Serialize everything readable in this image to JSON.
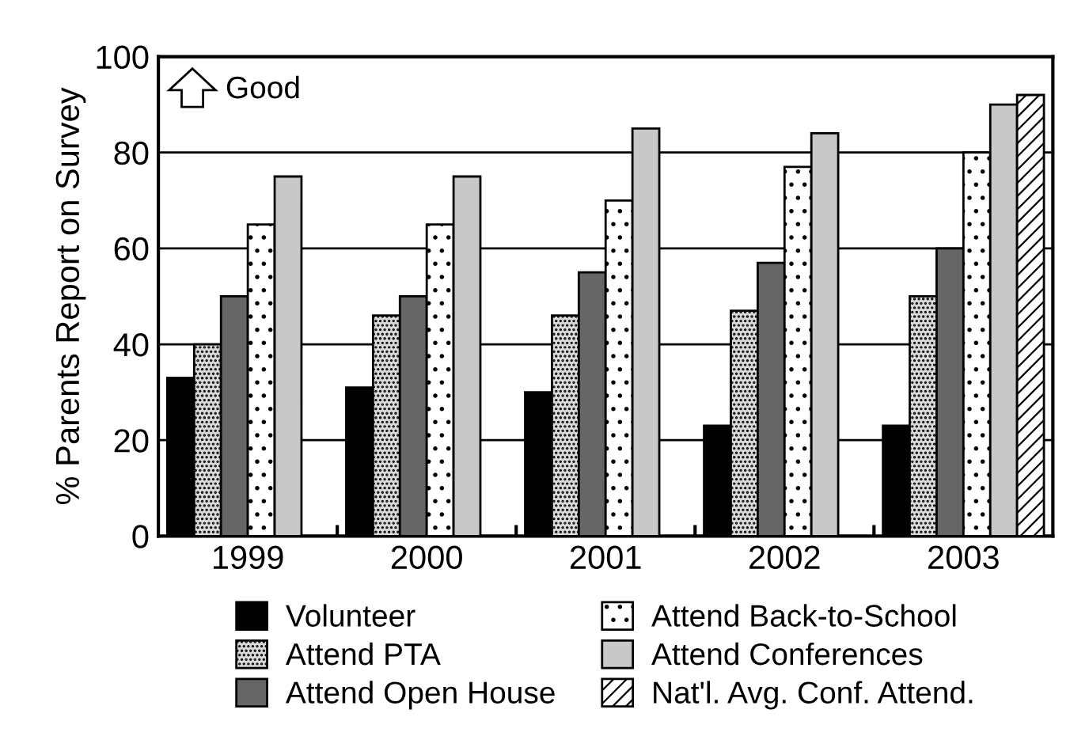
{
  "chart_data": {
    "type": "bar",
    "ylabel": "% Parents Report on Survey",
    "categories": [
      "1999",
      "2000",
      "2001",
      "2002",
      "2003"
    ],
    "series": [
      {
        "name": "Volunteer",
        "color": "#000000",
        "values": [
          33,
          31,
          30,
          23,
          23
        ]
      },
      {
        "name": "Attend PTA",
        "color": "#d9d9d9",
        "values": [
          40,
          46,
          46,
          47,
          50
        ]
      },
      {
        "name": "Attend Open House",
        "color": "#666666",
        "values": [
          50,
          50,
          55,
          57,
          60
        ]
      },
      {
        "name": "Attend Back-to-School",
        "color": "#ffffff",
        "values": [
          65,
          65,
          70,
          77,
          80
        ]
      },
      {
        "name": "Attend Conferences",
        "color": "#c8c8c8",
        "values": [
          75,
          75,
          85,
          84,
          90
        ]
      },
      {
        "name": "Nat'l. Avg. Conf. Attend.",
        "color": "#ffffff",
        "values": [
          null,
          null,
          null,
          null,
          92
        ]
      }
    ],
    "ylim": [
      0,
      100
    ],
    "yticks": [
      0,
      20,
      40,
      60,
      80,
      100
    ],
    "grid": "y",
    "legend": "bottom",
    "annotations": [
      "Good"
    ]
  }
}
